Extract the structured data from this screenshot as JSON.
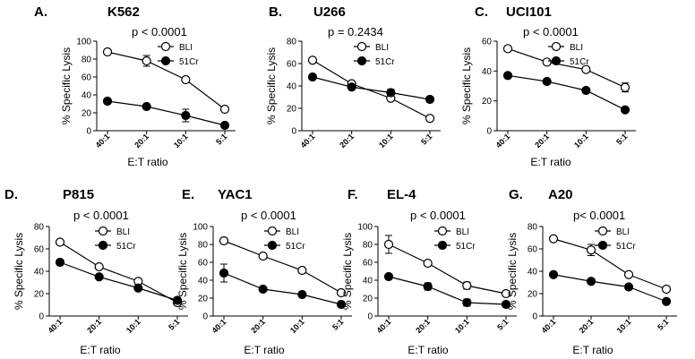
{
  "figure": {
    "xlabel_text": "E:T ratio"
  },
  "chart_data": [
    {
      "letter": "A.",
      "title": "K562",
      "pvalue": "p < 0.0001",
      "type": "line",
      "categories": [
        "40:1",
        "20:1",
        "10:1",
        "5:1"
      ],
      "ylabel": "% Specific Lysis",
      "xlabel": "E:T ratio",
      "ylim": [
        0,
        100
      ],
      "yticks": [
        0,
        20,
        40,
        60,
        80,
        100
      ],
      "series": [
        {
          "name": "BLI",
          "marker": "open-circle",
          "values": [
            88,
            78,
            57,
            24
          ],
          "errors": [
            0,
            6,
            0,
            0
          ]
        },
        {
          "name": "51Cr",
          "marker": "filled-circle",
          "values": [
            33,
            27,
            17,
            6
          ],
          "errors": [
            0,
            0,
            7,
            0
          ]
        }
      ]
    },
    {
      "letter": "B.",
      "title": "U266",
      "pvalue": "p = 0.2434",
      "type": "line",
      "categories": [
        "40:1",
        "20:1",
        "10:1",
        "5:1"
      ],
      "ylabel": "% Specific Lysis",
      "xlabel": "",
      "ylim": [
        0,
        80
      ],
      "yticks": [
        0,
        20,
        40,
        60,
        80
      ],
      "series": [
        {
          "name": "BLI",
          "marker": "open-circle",
          "values": [
            63,
            42,
            29,
            11
          ],
          "errors": [
            0,
            0,
            0,
            0
          ]
        },
        {
          "name": "51Cr",
          "marker": "filled-circle",
          "values": [
            48,
            39,
            34,
            28
          ],
          "errors": [
            0,
            0,
            3,
            0
          ]
        }
      ]
    },
    {
      "letter": "C.",
      "title": "UCI101",
      "pvalue": "p < 0.0001",
      "type": "line",
      "categories": [
        "40:1",
        "20:1",
        "10:1",
        "5:1"
      ],
      "ylabel": "% Specific Lysis",
      "xlabel": "E:T ratio",
      "ylim": [
        0,
        60
      ],
      "yticks": [
        0,
        20,
        40,
        60
      ],
      "series": [
        {
          "name": "BLI",
          "marker": "open-circle",
          "values": [
            55,
            46,
            41,
            29
          ],
          "errors": [
            0,
            0,
            0,
            3
          ]
        },
        {
          "name": "51Cr",
          "marker": "filled-circle",
          "values": [
            37,
            33,
            27,
            14
          ],
          "errors": [
            0,
            0,
            0,
            1
          ]
        }
      ]
    },
    {
      "letter": "D.",
      "title": "P815",
      "pvalue": "p < 0.0001",
      "type": "line",
      "categories": [
        "40:1",
        "20:1",
        "10:1",
        "5:1"
      ],
      "ylabel": "% Specific Lysis",
      "xlabel": "E:T ratio",
      "ylim": [
        0,
        80
      ],
      "yticks": [
        0,
        20,
        40,
        60,
        80
      ],
      "series": [
        {
          "name": "BLI",
          "marker": "open-circle",
          "values": [
            66,
            44,
            31,
            12
          ],
          "errors": [
            0,
            0,
            0,
            0
          ]
        },
        {
          "name": "51Cr",
          "marker": "filled-circle",
          "values": [
            48,
            35,
            25,
            14
          ],
          "errors": [
            0,
            0,
            0,
            0
          ]
        }
      ]
    },
    {
      "letter": "E.",
      "title": "YAC1",
      "pvalue": "p < 0.0001",
      "type": "line",
      "categories": [
        "40:1",
        "20:1",
        "10:1",
        "5:1"
      ],
      "ylabel": "% Specific Lysis",
      "xlabel": "E:T ratio",
      "ylim": [
        0,
        100
      ],
      "yticks": [
        0,
        20,
        40,
        60,
        80,
        100
      ],
      "series": [
        {
          "name": "BLI",
          "marker": "open-circle",
          "values": [
            84,
            67,
            51,
            26
          ],
          "errors": [
            0,
            0,
            0,
            0
          ]
        },
        {
          "name": "51Cr",
          "marker": "filled-circle",
          "values": [
            48,
            30,
            24,
            13
          ],
          "errors": [
            10,
            0,
            0,
            0
          ]
        }
      ]
    },
    {
      "letter": "F.",
      "title": "EL-4",
      "pvalue": "p < 0.0001",
      "type": "line",
      "categories": [
        "40:1",
        "20:1",
        "10:1",
        "5:1"
      ],
      "ylabel": "% Specific Lysis",
      "xlabel": "E:T ratio",
      "ylim": [
        0,
        100
      ],
      "yticks": [
        0,
        20,
        40,
        60,
        80,
        100
      ],
      "series": [
        {
          "name": "BLI",
          "marker": "open-circle",
          "values": [
            80,
            59,
            34,
            25
          ],
          "errors": [
            10,
            0,
            4,
            0
          ]
        },
        {
          "name": "51Cr",
          "marker": "filled-circle",
          "values": [
            44,
            33,
            15,
            13
          ],
          "errors": [
            0,
            4,
            4,
            0
          ]
        }
      ]
    },
    {
      "letter": "G.",
      "title": "A20",
      "pvalue": "p< 0.0001",
      "type": "line",
      "categories": [
        "40:1",
        "20:1",
        "10:1",
        "5:1"
      ],
      "ylabel": "% Specific Lysis",
      "xlabel": "E:T ratio",
      "ylim": [
        0,
        80
      ],
      "yticks": [
        0,
        20,
        40,
        60,
        80
      ],
      "series": [
        {
          "name": "BLI",
          "marker": "open-circle",
          "values": [
            69,
            59,
            37,
            24
          ],
          "errors": [
            0,
            5,
            0,
            0
          ]
        },
        {
          "name": "51Cr",
          "marker": "filled-circle",
          "values": [
            37,
            31,
            26,
            13
          ],
          "errors": [
            0,
            0,
            0,
            0
          ]
        }
      ]
    }
  ]
}
